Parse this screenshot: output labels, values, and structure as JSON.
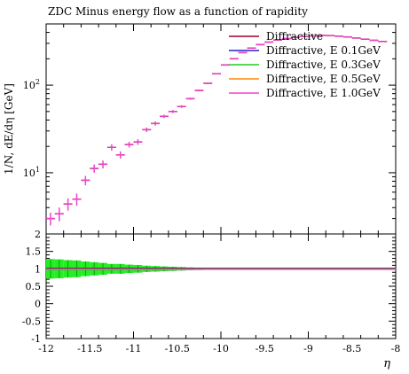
{
  "chart_data": {
    "type": "line",
    "title": "ZDC Minus energy flow as a function of rapidity",
    "xlabel": "η",
    "ylabel": "1/N, dE/dη [GeV]",
    "xlim": [
      -12,
      -8
    ],
    "ylim": [
      2,
      500
    ],
    "yscale": "log",
    "ratio_ylim": [
      -1,
      2
    ],
    "x_ticks": [
      "-12",
      "-11.5",
      "-11",
      "-10.5",
      "-10",
      "-9.5",
      "-9",
      "-8.5",
      "-8"
    ],
    "y_ticks": [
      "10^1",
      "10^2"
    ],
    "ratio_ticks": [
      "-1",
      "-0.5",
      "0",
      "0.5",
      "1",
      "1.5",
      "2"
    ],
    "legend_position": "top-right",
    "series": [
      {
        "name": "Diffractive",
        "color": "#a0002a"
      },
      {
        "name": "Diffractive, E 0.1GeV",
        "color": "#2222cc"
      },
      {
        "name": "Diffractive, E 0.3GeV",
        "color": "#22cc22"
      },
      {
        "name": "Diffractive, E 0.5GeV",
        "color": "#ff8800"
      },
      {
        "name": "Diffractive, E 1.0GeV",
        "color": "#ee44cc"
      }
    ],
    "points": [
      {
        "x": -11.95,
        "y": 3.0,
        "err": 0.5
      },
      {
        "x": -11.85,
        "y": 3.4,
        "err": 0.6
      },
      {
        "x": -11.75,
        "y": 4.4,
        "err": 0.7
      },
      {
        "x": -11.65,
        "y": 5.0,
        "err": 0.8
      },
      {
        "x": -11.55,
        "y": 8.2,
        "err": 1.0
      },
      {
        "x": -11.45,
        "y": 11.2,
        "err": 1.2
      },
      {
        "x": -11.35,
        "y": 12.5,
        "err": 1.3
      },
      {
        "x": -11.25,
        "y": 19.5,
        "err": 1.6
      },
      {
        "x": -11.15,
        "y": 16.0,
        "err": 1.5
      },
      {
        "x": -11.05,
        "y": 21.0,
        "err": 1.6
      },
      {
        "x": -10.95,
        "y": 22.5,
        "err": 1.7
      },
      {
        "x": -10.85,
        "y": 31.0,
        "err": 1.8
      },
      {
        "x": -10.75,
        "y": 36.5,
        "err": 2.0
      },
      {
        "x": -10.65,
        "y": 44.0,
        "err": 2.0
      },
      {
        "x": -10.55,
        "y": 50.0,
        "err": 2.0
      },
      {
        "x": -10.45,
        "y": 57.0,
        "err": 2.0
      },
      {
        "x": -10.35,
        "y": 70.0,
        "err": 2.0
      },
      {
        "x": -10.25,
        "y": 87.0,
        "err": 2.0
      },
      {
        "x": -10.15,
        "y": 105.0,
        "err": 2.0
      },
      {
        "x": -10.05,
        "y": 135.0,
        "err": 2.0
      },
      {
        "x": -9.95,
        "y": 170.0,
        "err": 2.0
      },
      {
        "x": -9.85,
        "y": 200.0,
        "err": 2.0
      },
      {
        "x": -9.75,
        "y": 235.0,
        "err": 2.0
      },
      {
        "x": -9.65,
        "y": 265.0,
        "err": 2.0
      },
      {
        "x": -9.55,
        "y": 290.0,
        "err": 2.0
      },
      {
        "x": -9.45,
        "y": 310.0,
        "err": 2.0
      },
      {
        "x": -9.35,
        "y": 328.0,
        "err": 2.0
      },
      {
        "x": -9.25,
        "y": 340.0,
        "err": 2.0
      },
      {
        "x": -9.15,
        "y": 350.0,
        "err": 2.0
      },
      {
        "x": -9.05,
        "y": 360.0,
        "err": 2.0
      },
      {
        "x": -8.95,
        "y": 365.0,
        "err": 2.0
      },
      {
        "x": -8.85,
        "y": 370.0,
        "err": 2.0
      },
      {
        "x": -8.75,
        "y": 368.0,
        "err": 2.0
      },
      {
        "x": -8.65,
        "y": 362.0,
        "err": 2.0
      },
      {
        "x": -8.55,
        "y": 355.0,
        "err": 2.0
      },
      {
        "x": -8.45,
        "y": 345.0,
        "err": 2.0
      },
      {
        "x": -8.35,
        "y": 335.0,
        "err": 2.0
      },
      {
        "x": -8.25,
        "y": 325.0,
        "err": 2.0
      },
      {
        "x": -8.15,
        "y": 315.0,
        "err": 2.0
      }
    ],
    "ratio_band": [
      {
        "x": -11.95,
        "err": 0.28
      },
      {
        "x": -11.85,
        "err": 0.27
      },
      {
        "x": -11.75,
        "err": 0.25
      },
      {
        "x": -11.65,
        "err": 0.24
      },
      {
        "x": -11.55,
        "err": 0.21
      },
      {
        "x": -11.45,
        "err": 0.19
      },
      {
        "x": -11.35,
        "err": 0.17
      },
      {
        "x": -11.25,
        "err": 0.14
      },
      {
        "x": -11.15,
        "err": 0.14
      },
      {
        "x": -11.05,
        "err": 0.12
      },
      {
        "x": -10.95,
        "err": 0.11
      },
      {
        "x": -10.85,
        "err": 0.09
      },
      {
        "x": -10.75,
        "err": 0.08
      },
      {
        "x": -10.65,
        "err": 0.07
      },
      {
        "x": -10.55,
        "err": 0.06
      },
      {
        "x": -10.45,
        "err": 0.05
      },
      {
        "x": -10.35,
        "err": 0.04
      },
      {
        "x": -10.25,
        "err": 0.035
      },
      {
        "x": -10.15,
        "err": 0.03
      },
      {
        "x": -10.05,
        "err": 0.025
      },
      {
        "x": -9.95,
        "err": 0.02
      },
      {
        "x": -9.85,
        "err": 0.018
      },
      {
        "x": -9.75,
        "err": 0.015
      },
      {
        "x": -9.65,
        "err": 0.013
      },
      {
        "x": -9.55,
        "err": 0.012
      },
      {
        "x": -9.45,
        "err": 0.01
      },
      {
        "x": -9.35,
        "err": 0.01
      },
      {
        "x": -9.25,
        "err": 0.01
      },
      {
        "x": -9.15,
        "err": 0.01
      },
      {
        "x": -9.05,
        "err": 0.01
      },
      {
        "x": -8.95,
        "err": 0.01
      },
      {
        "x": -8.85,
        "err": 0.01
      },
      {
        "x": -8.75,
        "err": 0.01
      },
      {
        "x": -8.65,
        "err": 0.01
      },
      {
        "x": -8.55,
        "err": 0.01
      },
      {
        "x": -8.45,
        "err": 0.01
      },
      {
        "x": -8.35,
        "err": 0.01
      },
      {
        "x": -8.25,
        "err": 0.01
      },
      {
        "x": -8.15,
        "err": 0.01
      }
    ],
    "grid": false
  }
}
